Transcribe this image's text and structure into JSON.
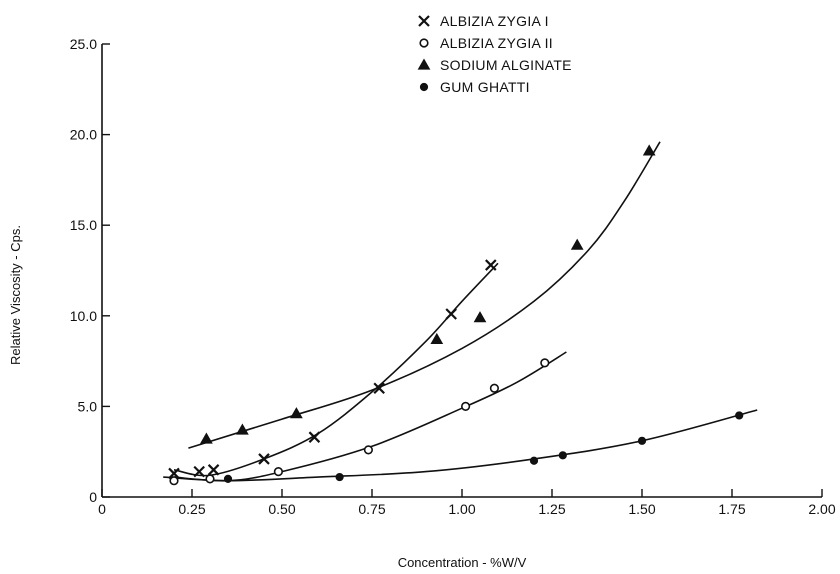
{
  "chart_data": {
    "type": "scatter",
    "title": "",
    "xlabel": "Concentration - %W/V",
    "ylabel": "Relative Viscosity - Cps.",
    "xlim": [
      0,
      2.0
    ],
    "ylim": [
      0,
      25.0
    ],
    "x_ticks": [
      0,
      0.25,
      0.5,
      0.75,
      1.0,
      1.25,
      1.5,
      1.75,
      2.0
    ],
    "x_tick_labels": [
      "0",
      "0.25",
      "0.50",
      "0.75",
      "1.00",
      "1.25",
      "1.50",
      "1.75",
      "2.00"
    ],
    "y_ticks": [
      0,
      5.0,
      10.0,
      15.0,
      20.0,
      25.0
    ],
    "y_tick_labels": [
      "0",
      "5.0",
      "10.0",
      "15.0",
      "20.0",
      "25.0"
    ],
    "grid": false,
    "legend_position": "top-right",
    "series": [
      {
        "name": "ALBIZIA ZYGIA I",
        "marker": "x",
        "x": [
          0.2,
          0.27,
          0.31,
          0.45,
          0.59,
          0.77,
          0.97,
          1.08
        ],
        "y": [
          1.3,
          1.4,
          1.5,
          2.1,
          3.3,
          6.0,
          10.1,
          12.8
        ],
        "curve_x": [
          0.2,
          0.3,
          0.45,
          0.6,
          0.75,
          0.9,
          1.0,
          1.1
        ],
        "curve_y": [
          1.5,
          1.2,
          2.1,
          3.5,
          5.8,
          8.6,
          10.8,
          12.9
        ]
      },
      {
        "name": "ALBIZIA ZYGIA II",
        "marker": "o",
        "x": [
          0.2,
          0.3,
          0.49,
          0.74,
          1.01,
          1.09,
          1.23
        ],
        "y": [
          0.9,
          1.0,
          1.4,
          2.6,
          5.0,
          6.0,
          7.4
        ],
        "curve_x": [
          0.2,
          0.35,
          0.5,
          0.75,
          1.0,
          1.15,
          1.29
        ],
        "curve_y": [
          1.1,
          0.9,
          1.4,
          2.8,
          4.9,
          6.3,
          8.0
        ]
      },
      {
        "name": "SODIUM ALGINATE",
        "marker": "triangle",
        "x": [
          0.29,
          0.39,
          0.54,
          0.93,
          1.05,
          1.32,
          1.52
        ],
        "y": [
          3.2,
          3.7,
          4.6,
          8.7,
          9.9,
          13.9,
          19.1
        ],
        "curve_x": [
          0.24,
          0.5,
          0.75,
          1.0,
          1.2,
          1.35,
          1.45,
          1.55
        ],
        "curve_y": [
          2.7,
          4.3,
          5.9,
          8.2,
          10.8,
          13.6,
          16.3,
          19.6
        ]
      },
      {
        "name": "GUM GHATTI",
        "marker": "dot",
        "x": [
          0.35,
          0.66,
          1.2,
          1.28,
          1.5,
          1.77
        ],
        "y": [
          1.0,
          1.1,
          2.0,
          2.3,
          3.1,
          4.5
        ],
        "curve_x": [
          0.17,
          0.35,
          0.6,
          0.9,
          1.2,
          1.5,
          1.82
        ],
        "curve_y": [
          1.1,
          0.9,
          1.1,
          1.4,
          2.1,
          3.1,
          4.8
        ]
      }
    ]
  }
}
